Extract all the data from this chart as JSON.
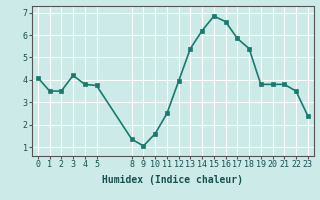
{
  "x": [
    0,
    1,
    2,
    3,
    4,
    5,
    8,
    9,
    10,
    11,
    12,
    13,
    14,
    15,
    16,
    17,
    18,
    19,
    20,
    21,
    22,
    23
  ],
  "y": [
    4.1,
    3.5,
    3.5,
    4.2,
    3.8,
    3.75,
    1.35,
    1.05,
    1.6,
    2.5,
    3.95,
    5.4,
    6.2,
    6.85,
    6.6,
    5.85,
    5.4,
    3.8,
    3.8,
    3.8,
    3.5,
    2.4
  ],
  "line_color": "#1a7a6e",
  "marker_color": "#1a7a6e",
  "bg_color": "#cceae7",
  "grid_color": "#ffffff",
  "xlabel": "Humidex (Indice chaleur)",
  "xticks": [
    0,
    1,
    2,
    3,
    4,
    5,
    8,
    9,
    10,
    11,
    12,
    13,
    14,
    15,
    16,
    17,
    18,
    19,
    20,
    21,
    22,
    23
  ],
  "yticks": [
    1,
    2,
    3,
    4,
    5,
    6,
    7
  ],
  "ylim": [
    0.6,
    7.3
  ],
  "xlim": [
    -0.5,
    23.5
  ],
  "xlabel_fontsize": 7,
  "tick_fontsize": 6,
  "linewidth": 1.2,
  "markersize": 2.5
}
